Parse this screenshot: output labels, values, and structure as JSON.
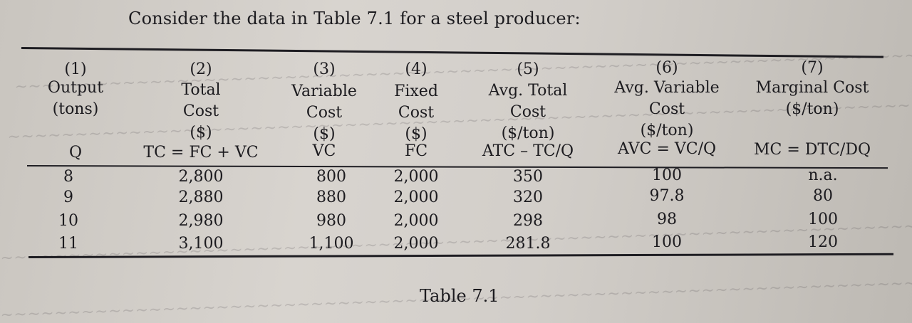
{
  "intro_text": "Consider the data in Table 7.1 for a steel producer:",
  "caption": "Table 7.1",
  "columns": [
    {
      "num": "(1)",
      "name_lines": [
        "Output",
        "(tons)"
      ],
      "symbol": "Q"
    },
    {
      "num": "(2)",
      "name_lines": [
        "Total",
        "Cost",
        "($)"
      ],
      "symbol": "TC = FC + VC"
    },
    {
      "num": "(3)",
      "name_lines": [
        "Variable",
        "Cost",
        "($)"
      ],
      "symbol": "VC"
    },
    {
      "num": "(4)",
      "name_lines": [
        "Fixed",
        "Cost",
        "($)"
      ],
      "symbol": "FC"
    },
    {
      "num": "(5)",
      "name_lines": [
        "Avg. Total",
        "Cost",
        "($/ton)"
      ],
      "symbol": "ATC – TC/Q"
    },
    {
      "num": "(6)",
      "name_lines": [
        "Avg. Variable",
        "Cost",
        "($/ton)"
      ],
      "symbol": "AVC = VC/Q"
    },
    {
      "num": "(7)",
      "name_lines": [
        "Marginal Cost",
        "($/ton)"
      ],
      "symbol": "MC = DTC/DQ"
    }
  ],
  "rows": [
    [
      "8",
      "2,800",
      "800",
      "2,000",
      "350",
      "100",
      "n.a."
    ],
    [
      "9",
      "2,880",
      "880",
      "2,000",
      "320",
      "97.8",
      "80"
    ],
    [
      "10",
      "2,980",
      "980",
      "2,000",
      "298",
      "98",
      "100"
    ],
    [
      "11",
      "3,100",
      "1,100",
      "2,000",
      "281.8",
      "100",
      "120"
    ]
  ]
}
